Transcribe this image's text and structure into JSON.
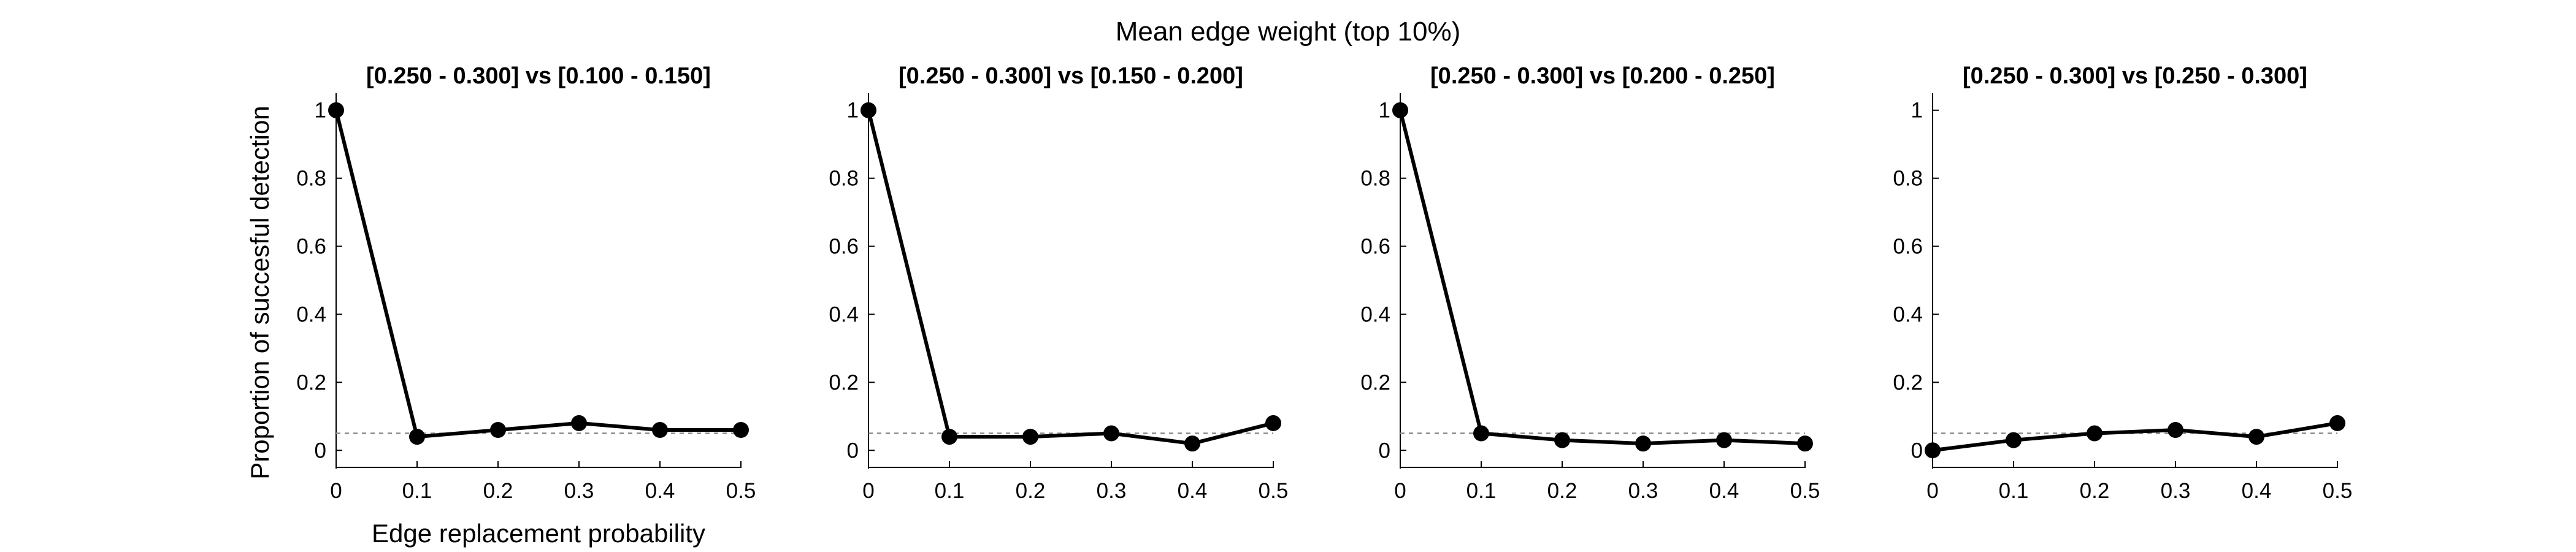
{
  "figure": {
    "suptitle": "Mean edge weight (top 10%)"
  },
  "chart_data": [
    {
      "type": "line",
      "title": "[0.250 - 0.300] vs [0.100 - 0.150]",
      "xlabel": "Edge replacement probability",
      "ylabel": "Proportion of succesful detection",
      "x": [
        0,
        0.1,
        0.2,
        0.3,
        0.4,
        0.5
      ],
      "y": [
        1,
        0.04,
        0.06,
        0.08,
        0.06,
        0.06
      ],
      "xticks": [
        "0",
        "0.1",
        "0.2",
        "0.3",
        "0.4",
        "0.5"
      ],
      "yticks": [
        "0",
        "0.2",
        "0.4",
        "0.6",
        "0.8",
        "1"
      ],
      "xlim": [
        0,
        0.5
      ],
      "ylim": [
        -0.05,
        1.05
      ],
      "reference_line": 0.05,
      "grid": false,
      "line_color": "#000000",
      "reference_color": "#8c8c8c"
    },
    {
      "type": "line",
      "title": "[0.250 - 0.300] vs [0.150 - 0.200]",
      "xlabel": "",
      "ylabel": "",
      "x": [
        0,
        0.1,
        0.2,
        0.3,
        0.4,
        0.5
      ],
      "y": [
        1,
        0.04,
        0.04,
        0.05,
        0.02,
        0.08
      ],
      "xticks": [
        "0",
        "0.1",
        "0.2",
        "0.3",
        "0.4",
        "0.5"
      ],
      "yticks": [
        "0",
        "0.2",
        "0.4",
        "0.6",
        "0.8",
        "1"
      ],
      "xlim": [
        0,
        0.5
      ],
      "ylim": [
        -0.05,
        1.05
      ],
      "reference_line": 0.05,
      "grid": false,
      "line_color": "#000000",
      "reference_color": "#8c8c8c"
    },
    {
      "type": "line",
      "title": "[0.250 - 0.300] vs [0.200 - 0.250]",
      "xlabel": "",
      "ylabel": "",
      "x": [
        0,
        0.1,
        0.2,
        0.3,
        0.4,
        0.5
      ],
      "y": [
        1,
        0.05,
        0.03,
        0.02,
        0.03,
        0.02
      ],
      "xticks": [
        "0",
        "0.1",
        "0.2",
        "0.3",
        "0.4",
        "0.5"
      ],
      "yticks": [
        "0",
        "0.2",
        "0.4",
        "0.6",
        "0.8",
        "1"
      ],
      "xlim": [
        0,
        0.5
      ],
      "ylim": [
        -0.05,
        1.05
      ],
      "reference_line": 0.05,
      "grid": false,
      "line_color": "#000000",
      "reference_color": "#8c8c8c"
    },
    {
      "type": "line",
      "title": "[0.250 - 0.300] vs [0.250 - 0.300]",
      "xlabel": "",
      "ylabel": "",
      "x": [
        0,
        0.1,
        0.2,
        0.3,
        0.4,
        0.5
      ],
      "y": [
        0,
        0.03,
        0.05,
        0.06,
        0.04,
        0.08
      ],
      "xticks": [
        "0",
        "0.1",
        "0.2",
        "0.3",
        "0.4",
        "0.5"
      ],
      "yticks": [
        "0",
        "0.2",
        "0.4",
        "0.6",
        "0.8",
        "1"
      ],
      "xlim": [
        0,
        0.5
      ],
      "ylim": [
        -0.05,
        1.05
      ],
      "reference_line": 0.05,
      "grid": false,
      "line_color": "#000000",
      "reference_color": "#8c8c8c"
    }
  ]
}
